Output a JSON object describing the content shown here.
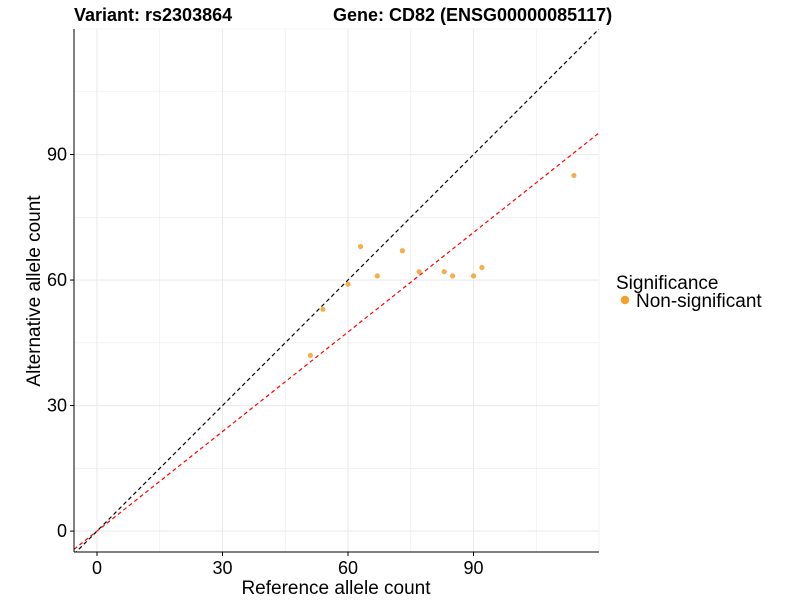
{
  "header": {
    "variant_title": "Variant: rs2303864",
    "gene_title": "Gene: CD82 (ENSG00000085117)"
  },
  "chart_data": {
    "type": "scatter",
    "xlabel": "Reference allele count",
    "ylabel": "Alternative allele count",
    "xlim": [
      -5.5,
      120
    ],
    "ylim": [
      -5,
      120
    ],
    "x_ticks": [
      0,
      30,
      60,
      90
    ],
    "y_ticks": [
      0,
      30,
      60,
      90
    ],
    "grid": true,
    "legend": {
      "title": "Significance",
      "placement": "right",
      "entries": [
        {
          "label": "Non-significant",
          "color": "#F5A02A"
        }
      ]
    },
    "points": [
      {
        "x": 51,
        "y": 42
      },
      {
        "x": 54,
        "y": 53
      },
      {
        "x": 60,
        "y": 59
      },
      {
        "x": 63,
        "y": 68
      },
      {
        "x": 67,
        "y": 61
      },
      {
        "x": 73,
        "y": 67
      },
      {
        "x": 77,
        "y": 62
      },
      {
        "x": 83,
        "y": 62
      },
      {
        "x": 85,
        "y": 61
      },
      {
        "x": 90,
        "y": 61
      },
      {
        "x": 92,
        "y": 63
      },
      {
        "x": 114,
        "y": 85
      }
    ],
    "reference_lines": [
      {
        "slope": 1.0,
        "intercept": 0,
        "color": "#000000",
        "style": "dashed"
      },
      {
        "slope": 0.793,
        "intercept": 0,
        "color": "#FF0000",
        "style": "dashed"
      }
    ],
    "colors": {
      "point": "#F5A02A",
      "grid": "#EBEBEB"
    }
  }
}
